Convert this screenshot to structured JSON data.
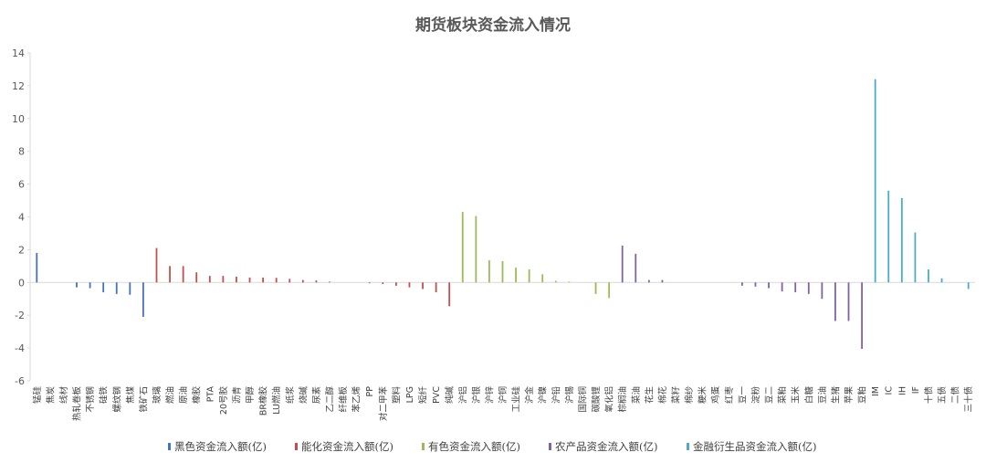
{
  "chart_data": {
    "type": "bar",
    "title": "期货板块资金流入情况",
    "xlabel": "",
    "ylabel": "",
    "ylim": [
      -6,
      14
    ],
    "yticks": [
      -6,
      -4,
      -2,
      0,
      2,
      4,
      6,
      8,
      10,
      12,
      14
    ],
    "grid": false,
    "legend_position": "bottom",
    "series": [
      {
        "name": "黑色资金流入额(亿)",
        "color": "#4472C4",
        "data": [
          [
            "锰硅",
            1.8
          ],
          [
            "焦炭",
            0.0
          ],
          [
            "线材",
            0.0
          ],
          [
            "热轧卷板",
            -0.3
          ],
          [
            "不锈钢",
            -0.35
          ],
          [
            "硅铁",
            -0.6
          ],
          [
            "螺纹钢",
            -0.7
          ],
          [
            "焦煤",
            -0.75
          ],
          [
            "铁矿石",
            -2.1
          ]
        ]
      },
      {
        "name": "能化资金流入额(亿)",
        "color": "#C0504D",
        "data": [
          [
            "玻璃",
            2.1
          ],
          [
            "燃油",
            1.0
          ],
          [
            "原油",
            1.0
          ],
          [
            "橡胶",
            0.62
          ],
          [
            "PTA",
            0.4
          ],
          [
            "20号胶",
            0.4
          ],
          [
            "沥青",
            0.35
          ],
          [
            "甲醇",
            0.3
          ],
          [
            "BR橡胶",
            0.3
          ],
          [
            "LU燃油",
            0.28
          ],
          [
            "纸浆",
            0.22
          ],
          [
            "烧碱",
            0.15
          ],
          [
            "尿素",
            0.12
          ],
          [
            "乙二醇",
            0.05
          ],
          [
            "纤维板",
            0.0
          ],
          [
            "苯乙烯",
            0.0
          ],
          [
            "PP",
            -0.05
          ],
          [
            "对二甲苯",
            -0.1
          ],
          [
            "塑料",
            -0.2
          ],
          [
            "LPG",
            -0.3
          ],
          [
            "短纤",
            -0.4
          ],
          [
            "PVC",
            -0.6
          ],
          [
            "纯碱",
            -1.45
          ]
        ]
      },
      {
        "name": "有色资金流入额(亿)",
        "color": "#9BBB59",
        "data": [
          [
            "沪铝",
            4.3
          ],
          [
            "沪银",
            4.05
          ],
          [
            "沪锌",
            1.35
          ],
          [
            "沪铜",
            1.3
          ],
          [
            "工业硅",
            0.9
          ],
          [
            "沪金",
            0.8
          ],
          [
            "沪镍",
            0.5
          ],
          [
            "沪铅",
            0.1
          ],
          [
            "沪锡",
            0.05
          ],
          [
            "国际铜",
            0.0
          ],
          [
            "碳酸锂",
            -0.7
          ],
          [
            "氧化铝",
            -0.95
          ]
        ]
      },
      {
        "name": "农产品资金流入额(亿)",
        "color": "#8064A2",
        "data": [
          [
            "棕榈油",
            2.25
          ],
          [
            "菜油",
            1.75
          ],
          [
            "花生",
            0.15
          ],
          [
            "棉花",
            0.15
          ],
          [
            "菜籽",
            0.0
          ],
          [
            "棉纱",
            0.0
          ],
          [
            "粳米",
            0.0
          ],
          [
            "鸡蛋",
            0.0
          ],
          [
            "红枣",
            0.0
          ],
          [
            "豆一",
            -0.2
          ],
          [
            "淀粉",
            -0.25
          ],
          [
            "豆二",
            -0.35
          ],
          [
            "菜粕",
            -0.55
          ],
          [
            "玉米",
            -0.6
          ],
          [
            "白糖",
            -0.7
          ],
          [
            "豆油",
            -1.0
          ],
          [
            "生猪",
            -2.35
          ],
          [
            "苹果",
            -2.35
          ],
          [
            "豆粕",
            -4.05
          ]
        ]
      },
      {
        "name": "金融衍生品资金流入额(亿)",
        "color": "#4BACC6",
        "data": [
          [
            "IM",
            12.4
          ],
          [
            "IC",
            5.6
          ],
          [
            "IH",
            5.15
          ],
          [
            "IF",
            3.05
          ],
          [
            "十债",
            0.8
          ],
          [
            "五债",
            0.25
          ],
          [
            "二债",
            0.0
          ],
          [
            "三十债",
            -0.4
          ]
        ]
      }
    ]
  }
}
